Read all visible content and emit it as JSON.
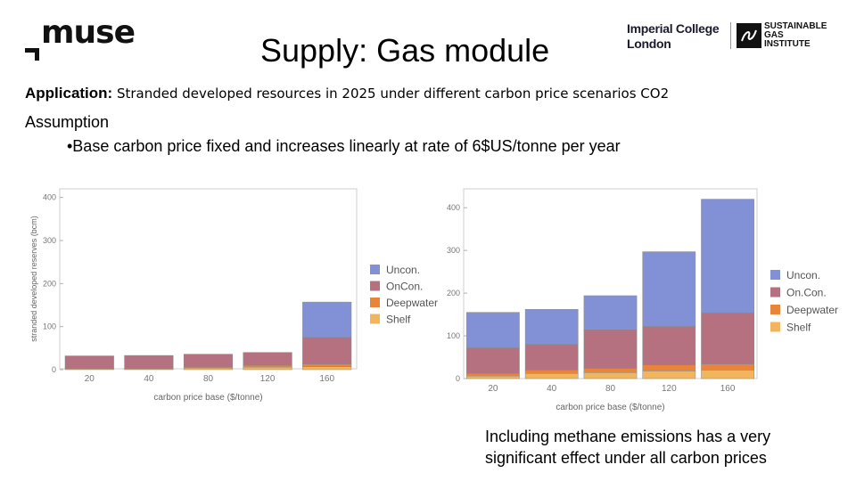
{
  "header": {
    "logo_text": "muse",
    "title": "Supply: Gas module",
    "imperial_logo": [
      "Imperial College",
      "London"
    ],
    "sgi_logo": [
      "SUSTAINABLE",
      "GAS",
      "INSTITUTE"
    ]
  },
  "application": {
    "label": "Application:",
    "text": "Stranded developed resources in 2025 under different carbon price scenarios CO2"
  },
  "assumption": {
    "heading": "Assumption",
    "bullet": "•Base carbon price fixed and increases linearly at rate of 6$US/tonne per year"
  },
  "note": "Including methane emissions has a very significant effect under all carbon prices",
  "colors": {
    "Shelf": "#f2b45c",
    "Deepwater": "#e8853a",
    "OnCon": "#b5717f",
    "Uncon": "#8291d6"
  },
  "chart_data": [
    {
      "type": "bar",
      "stacked": true,
      "title": "",
      "xlabel": "carbon price base ($/tonne)",
      "ylabel": "stranded developed reserves (bcm)",
      "ylim": [
        0,
        420
      ],
      "yticks": [
        0,
        100,
        200,
        300,
        400
      ],
      "categories": [
        "20",
        "40",
        "80",
        "120",
        "160"
      ],
      "legend_position": "right",
      "legend": [
        "Uncon.",
        "OnCon.",
        "Deepwater",
        "Shelf"
      ],
      "series": [
        {
          "name": "Shelf",
          "values": [
            2,
            2,
            4,
            6,
            7
          ]
        },
        {
          "name": "Deepwater",
          "values": [
            1,
            1,
            2,
            4,
            6
          ]
        },
        {
          "name": "OnCon.",
          "values": [
            29,
            30,
            30,
            30,
            62
          ]
        },
        {
          "name": "Uncon.",
          "values": [
            0,
            0,
            0,
            0,
            82
          ]
        }
      ]
    },
    {
      "type": "bar",
      "stacked": true,
      "title": "",
      "xlabel": "carbon price base ($/tonne)",
      "ylabel": "",
      "ylim": [
        0,
        440
      ],
      "yticks": [
        0,
        100,
        200,
        300,
        400
      ],
      "categories": [
        "20",
        "40",
        "80",
        "120",
        "160"
      ],
      "legend_position": "right",
      "legend": [
        "Uncon.",
        "On.Con.",
        "Deepwater",
        "Shelf"
      ],
      "series": [
        {
          "name": "Shelf",
          "values": [
            6,
            12,
            14,
            18,
            20
          ]
        },
        {
          "name": "Deepwater",
          "values": [
            6,
            8,
            10,
            14,
            14
          ]
        },
        {
          "name": "On.Con.",
          "values": [
            60,
            60,
            90,
            90,
            120
          ]
        },
        {
          "name": "Uncon.",
          "values": [
            83,
            82,
            80,
            175,
            266
          ]
        }
      ]
    }
  ]
}
